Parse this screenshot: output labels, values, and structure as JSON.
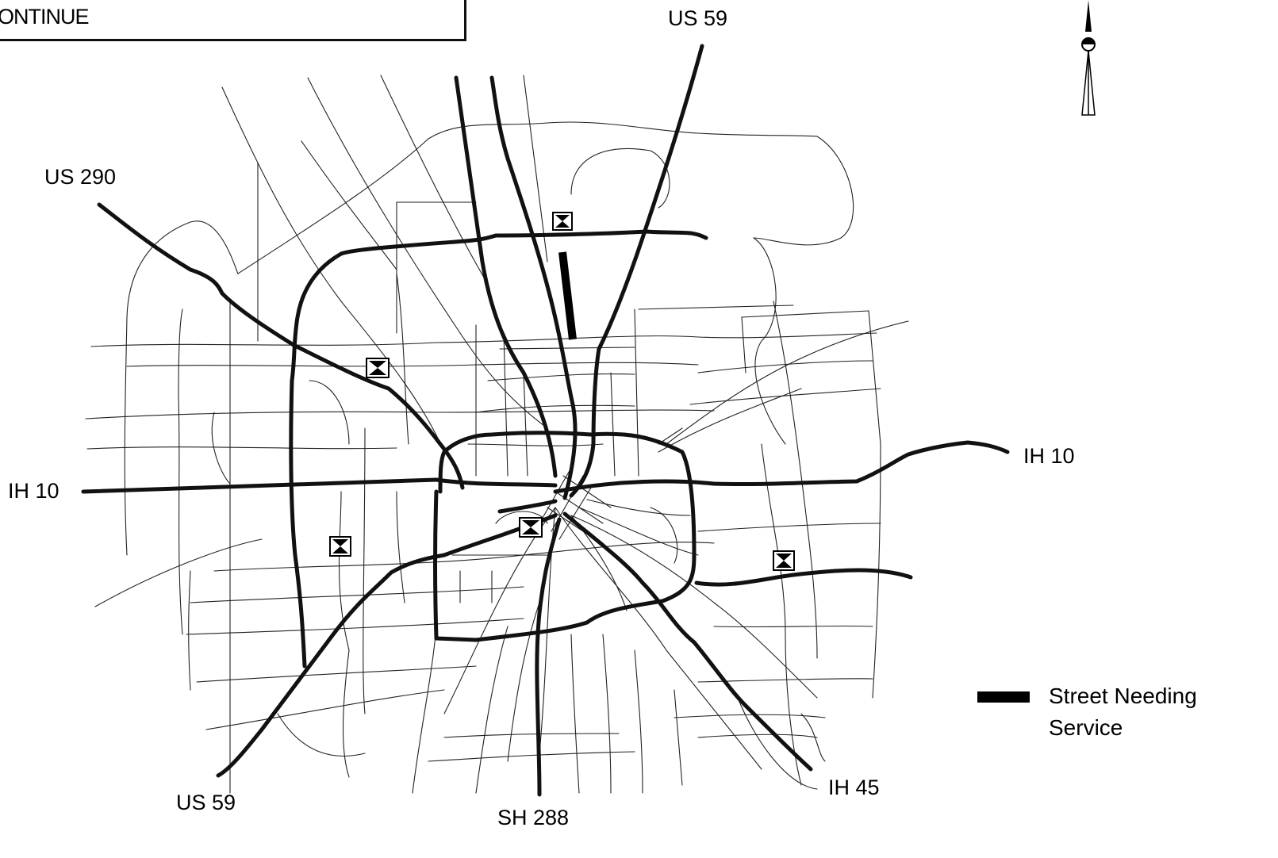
{
  "header_box": {
    "text": "ONTINUE"
  },
  "route_labels": {
    "us59_north": "US 59",
    "us290": "US 290",
    "ih10_west": "IH 10",
    "ih10_east": "IH 10",
    "us59_south": "US 59",
    "sh288": "SH 288",
    "ih45": "IH 45"
  },
  "legend": {
    "line1": "Street Needing",
    "line2": "Service"
  },
  "colors": {
    "ink": "#000000",
    "background": "#ffffff"
  },
  "icons": [
    "north-arrow-icon",
    "bus-stop-marker-icon"
  ]
}
